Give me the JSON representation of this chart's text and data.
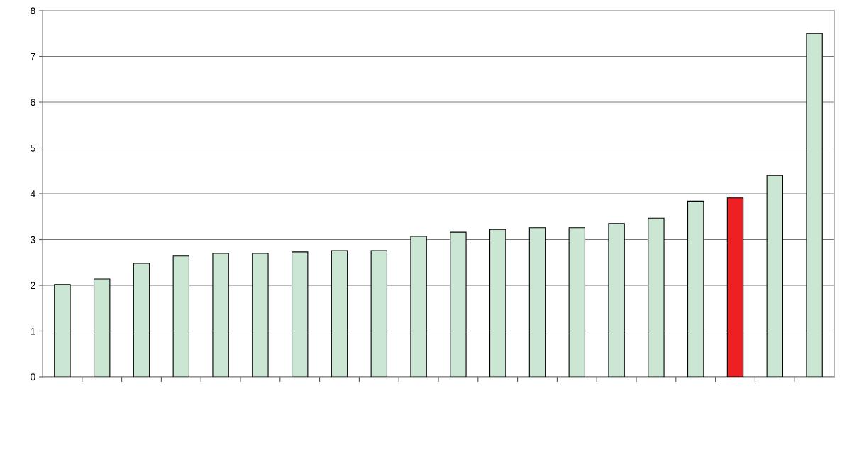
{
  "chart_data": {
    "type": "bar",
    "categories": [
      null,
      null,
      null,
      null,
      null,
      null,
      null,
      null,
      null,
      null,
      null,
      null,
      null,
      null,
      null,
      null,
      null,
      null,
      null,
      null
    ],
    "values": [
      2.02,
      2.14,
      2.48,
      2.64,
      2.7,
      2.7,
      2.73,
      2.76,
      2.76,
      3.07,
      3.16,
      3.22,
      3.26,
      3.26,
      3.35,
      3.47,
      3.84,
      3.91,
      4.4,
      7.5
    ],
    "colors": [
      "#cce6d4",
      "#cce6d4",
      "#cce6d4",
      "#cce6d4",
      "#cce6d4",
      "#cce6d4",
      "#cce6d4",
      "#cce6d4",
      "#cce6d4",
      "#cce6d4",
      "#cce6d4",
      "#cce6d4",
      "#cce6d4",
      "#cce6d4",
      "#cce6d4",
      "#cce6d4",
      "#cce6d4",
      "#ee2024",
      "#cce6d4",
      "#cce6d4"
    ],
    "ylim": [
      0,
      8
    ],
    "yticks": [
      0,
      1,
      2,
      3,
      4,
      5,
      6,
      7,
      8
    ],
    "grid": "y",
    "tick_labels": "y"
  }
}
